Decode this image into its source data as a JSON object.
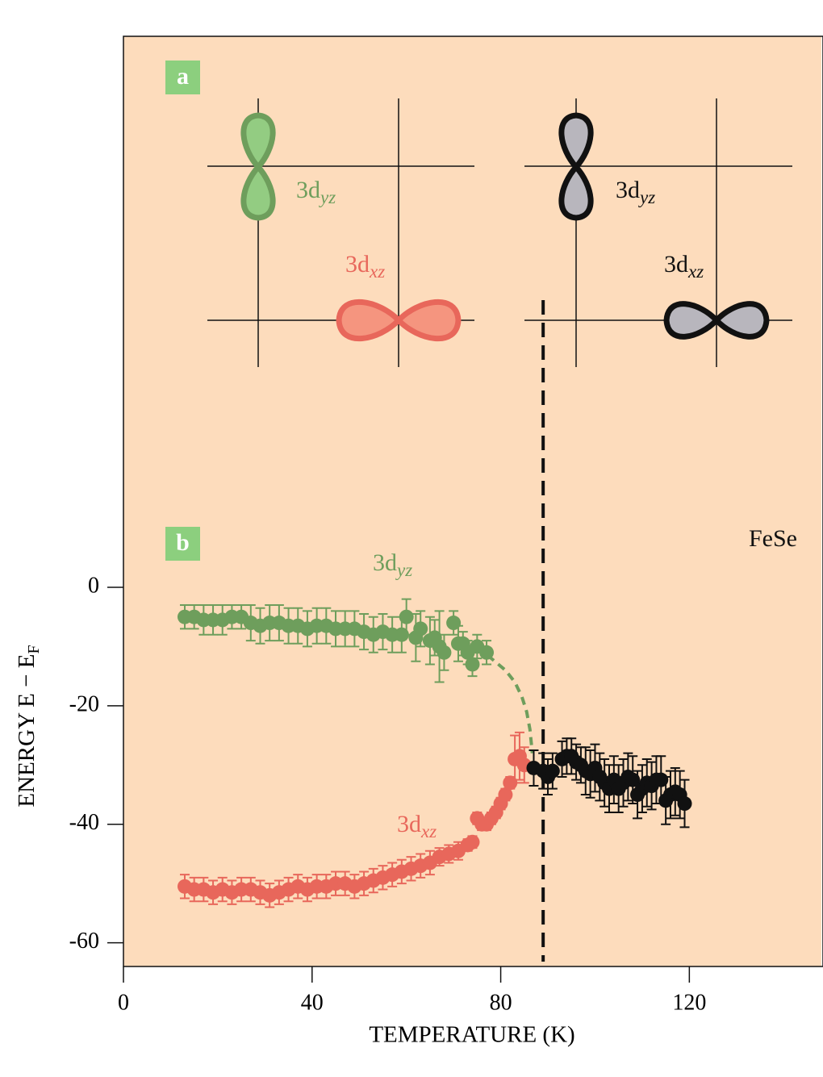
{
  "chart_data": {
    "type": "scatter",
    "xlabel": "TEMPERATURE (K)",
    "ylabel": {
      "text": "ENERGY E − E",
      "sub": "F"
    },
    "xlim": [
      0,
      148
    ],
    "ylim": [
      -64,
      93
    ],
    "xticks": [
      0,
      40,
      80,
      120
    ],
    "yticks": [
      0,
      -20,
      -40,
      -60
    ],
    "background": "#fddcbc",
    "panel_labels": [
      "a",
      "b"
    ],
    "panel_label_color": "#8ccf7e",
    "annotations": [
      {
        "text": "3d",
        "sub": "yz",
        "color": "#6e9e5c"
      },
      {
        "text": "3d",
        "sub": "xz",
        "color": "#e8675b"
      },
      {
        "text": "3d",
        "sub": "yz",
        "color": "#111111"
      },
      {
        "text": "3d",
        "sub": "xz",
        "color": "#111111"
      },
      {
        "text": "3d",
        "sub": "yz",
        "color": "#6e9e5c"
      },
      {
        "text": "3d",
        "sub": "xz",
        "color": "#e8675b"
      },
      {
        "text": "FeSe",
        "color": "#111111"
      }
    ],
    "series": [
      {
        "color": "#6e9e5c",
        "x": [
          13,
          15,
          17,
          19,
          21,
          23,
          25,
          27,
          29,
          31,
          33,
          35,
          37,
          39,
          41,
          43,
          45,
          47,
          49,
          51,
          53,
          55,
          57,
          59,
          60,
          62,
          63,
          65,
          66,
          67,
          68,
          70,
          71,
          72,
          73,
          74,
          75,
          77
        ],
        "values": [
          -5,
          -5,
          -5.5,
          -5.5,
          -5.5,
          -5,
          -5,
          -6,
          -6.5,
          -6,
          -6,
          -6.5,
          -6.5,
          -7,
          -6.5,
          -6.5,
          -7,
          -7,
          -7,
          -7.5,
          -8,
          -7.5,
          -8,
          -8,
          -5,
          -8.5,
          -7,
          -9,
          -8.5,
          -10,
          -11,
          -6,
          -9.5,
          -9.5,
          -11,
          -13,
          -10,
          -11
        ],
        "errors": [
          2,
          2,
          2.5,
          2.5,
          2.5,
          2,
          2,
          3,
          3,
          3,
          3,
          3,
          3,
          3,
          3,
          3,
          3,
          3,
          3,
          3,
          3,
          3,
          3,
          3,
          3,
          4,
          3,
          4,
          3,
          6,
          3,
          2,
          3,
          2,
          2,
          2,
          2,
          2
        ]
      },
      {
        "color": "#e8675b",
        "x": [
          13,
          15,
          17,
          19,
          21,
          23,
          25,
          27,
          29,
          31,
          33,
          35,
          37,
          39,
          41,
          43,
          45,
          47,
          49,
          51,
          53,
          55,
          57,
          59,
          61,
          63,
          65,
          67,
          69,
          71,
          73,
          74,
          75,
          76,
          77,
          78,
          79,
          80,
          81,
          82,
          83,
          84,
          85
        ],
        "values": [
          -50.5,
          -51,
          -51,
          -51.5,
          -51,
          -51.5,
          -51,
          -51,
          -51.5,
          -52,
          -51.5,
          -51,
          -50.5,
          -51,
          -50.5,
          -50.5,
          -50,
          -50,
          -50.5,
          -50,
          -49.5,
          -49,
          -48.5,
          -48,
          -47.5,
          -47,
          -46.5,
          -45.5,
          -45,
          -44.5,
          -43.5,
          -43,
          -39,
          -40,
          -40,
          -39,
          -38,
          -36.5,
          -35,
          -33,
          -29,
          -28.5,
          -30
        ],
        "errors": [
          2,
          2,
          2,
          2,
          2,
          2,
          2,
          2,
          2,
          2,
          2,
          2,
          2,
          2,
          2,
          2,
          2,
          2,
          2,
          2,
          2,
          2,
          2,
          2,
          2,
          2,
          2,
          1.5,
          1.5,
          1.5,
          1,
          1,
          1,
          1,
          1,
          1,
          1,
          1,
          1,
          1,
          4,
          4,
          3
        ]
      },
      {
        "color": "#111111",
        "x": [
          87,
          89,
          90,
          91,
          93,
          94,
          95,
          96,
          97,
          98,
          99,
          100,
          101,
          102,
          103,
          104,
          105,
          106,
          107,
          108,
          109,
          110,
          111,
          112,
          113,
          114,
          115,
          116,
          117,
          118,
          119
        ],
        "values": [
          -30.5,
          -31,
          -32,
          -31,
          -29,
          -28.5,
          -28.5,
          -29.5,
          -30,
          -31,
          -31.5,
          -30.5,
          -32,
          -33,
          -34,
          -32.5,
          -34,
          -33,
          -32,
          -32.5,
          -35,
          -34,
          -33,
          -33.5,
          -32.5,
          -32.5,
          -36,
          -35,
          -34.5,
          -35,
          -36.5
        ],
        "errors": [
          3,
          3,
          3,
          3,
          3,
          3,
          3,
          3,
          3,
          4,
          4,
          4,
          4,
          4,
          4,
          4,
          4,
          4,
          4,
          4,
          4,
          4,
          4,
          4,
          4,
          4,
          4,
          4,
          4,
          4,
          4
        ]
      }
    ],
    "fit": {
      "color": "#6e9e5c",
      "style": "dashed",
      "x": [
        75,
        78,
        81,
        83,
        84.5,
        85.5,
        86.2,
        86.7
      ],
      "values": [
        -10,
        -12,
        -14,
        -16,
        -18.5,
        -21,
        -24,
        -28
      ]
    },
    "vline": {
      "x": 89,
      "color": "#111111",
      "style": "dashed"
    }
  }
}
